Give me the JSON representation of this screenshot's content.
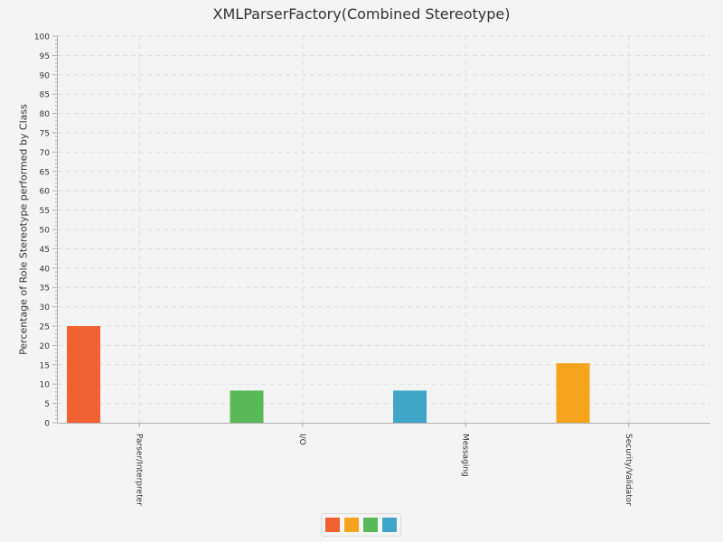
{
  "chart_data": {
    "type": "bar",
    "title": "XMLParserFactory(Combined Stereotype)",
    "xlabel": "",
    "ylabel": "Percentage of Role Stereotype performed by Class",
    "ylim": [
      0,
      100
    ],
    "y_tick_labels": [
      "0",
      "5",
      "10",
      "15",
      "20",
      "25",
      "30",
      "35",
      "40",
      "45",
      "50",
      "55",
      "60",
      "65",
      "70",
      "75",
      "80",
      "85",
      "90",
      "95",
      "100"
    ],
    "categories": [
      "Parser/Interpreter",
      "I/O",
      "Messaging",
      "Security/Validator"
    ],
    "values": [
      25,
      8.33,
      8.33,
      15.38
    ],
    "bar_colors": [
      "#f16232",
      "#59b857",
      "#3fa6c8",
      "#f6a41e"
    ],
    "grid": true,
    "legend": {
      "placement": "bottom-center",
      "swatches": [
        "#f16232",
        "#f6a41e",
        "#59b857",
        "#3fa6c8"
      ]
    }
  }
}
